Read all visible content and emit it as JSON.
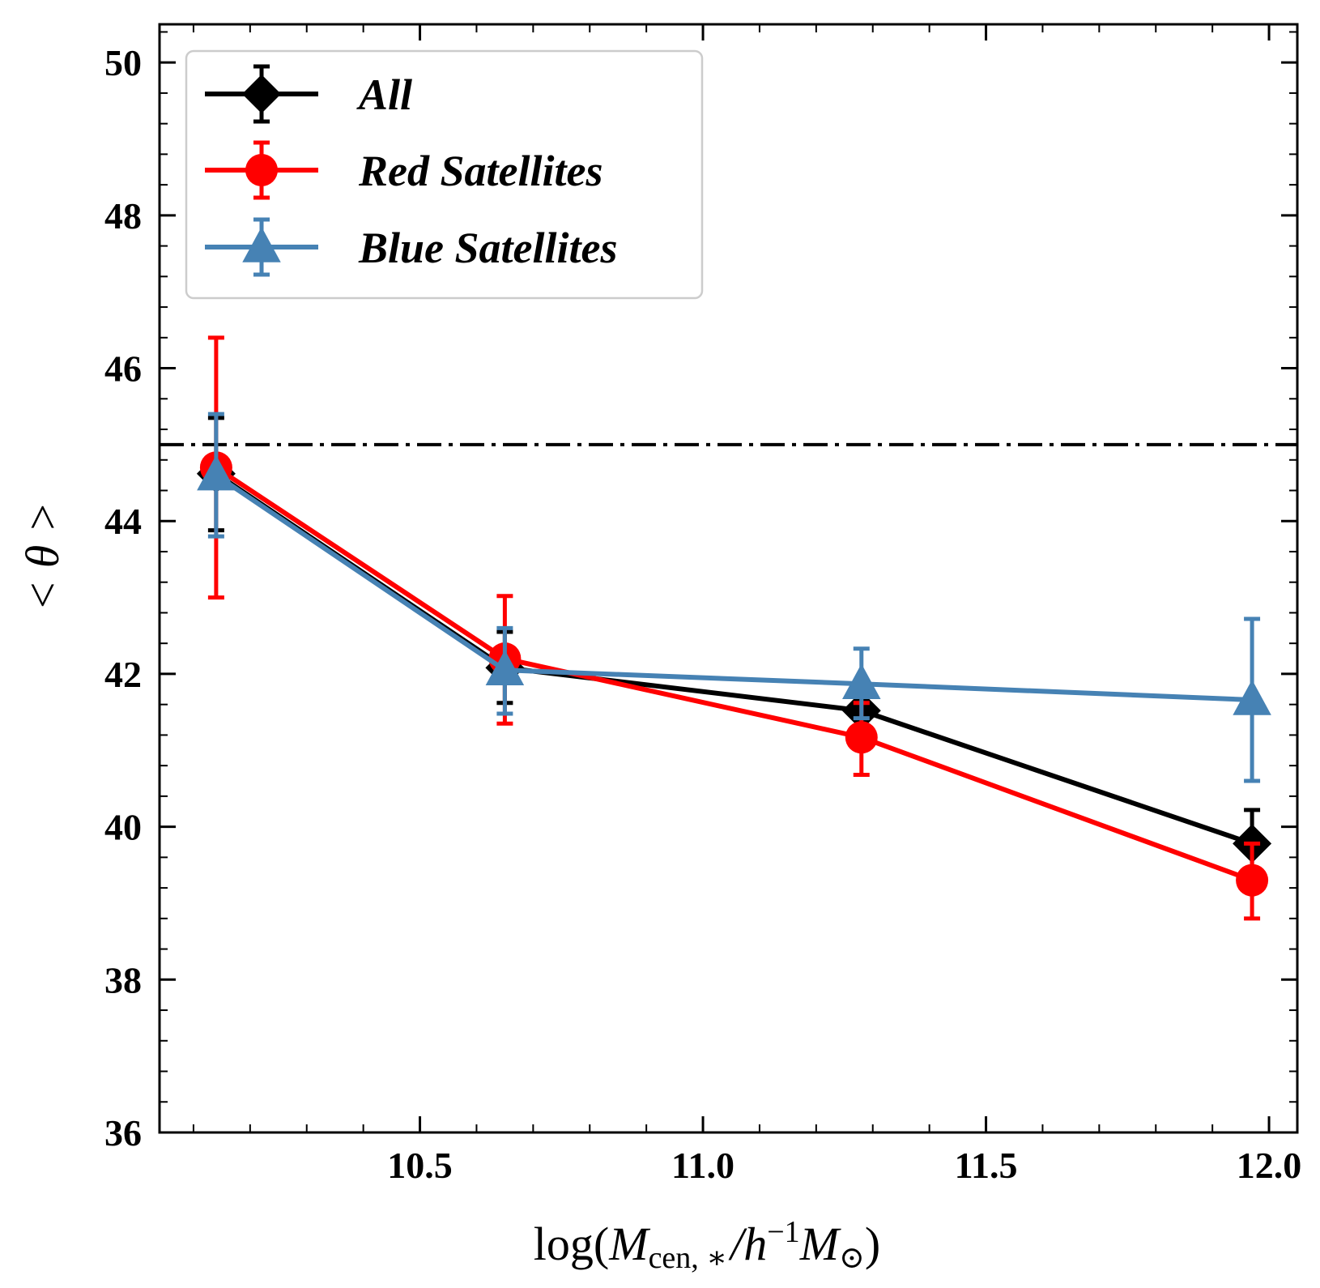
{
  "chart_data": {
    "type": "line",
    "title": "",
    "xlabel": "log(M_cen,*/h^-1 M_sun)",
    "xlabel_parts": {
      "prefix": "log(",
      "m1": "M",
      "m1_sub": "cen, ∗",
      "slash": "/",
      "h": "h",
      "h_sup": "−1",
      "m2": "M",
      "m2_sub": "⊙",
      "suffix": ")"
    },
    "ylabel": "< θ >",
    "xlim": [
      10.04,
      12.05
    ],
    "ylim": [
      36,
      50.5
    ],
    "xticks": [
      10.5,
      11.0,
      11.5,
      12.0
    ],
    "xtick_labels": [
      "10.5",
      "11.0",
      "11.5",
      "12.0"
    ],
    "x_minor_step": 0.1,
    "yticks": [
      36,
      38,
      40,
      42,
      44,
      46,
      48,
      50
    ],
    "ytick_labels": [
      "36",
      "38",
      "40",
      "42",
      "44",
      "46",
      "48",
      "50"
    ],
    "y_minor_step": 0.4,
    "reference_line": {
      "y": 45,
      "style": "dashdot",
      "color": "#000000"
    },
    "legend": {
      "position": "top-left"
    },
    "series": [
      {
        "name": "All",
        "color": "#000000",
        "marker": "diamond",
        "x": [
          10.14,
          10.65,
          11.28,
          11.97
        ],
        "y": [
          44.62,
          42.08,
          41.52,
          39.78
        ],
        "yerr_low": [
          43.88,
          41.62,
          41.25,
          39.45
        ],
        "yerr_high": [
          45.35,
          42.55,
          41.78,
          40.22
        ]
      },
      {
        "name": "Red Satellites",
        "color": "#ff0000",
        "marker": "circle",
        "x": [
          10.14,
          10.65,
          11.28,
          11.97
        ],
        "y": [
          44.7,
          42.2,
          41.17,
          39.3
        ],
        "yerr_low": [
          43.0,
          41.35,
          40.68,
          38.8
        ],
        "yerr_high": [
          46.4,
          43.02,
          41.62,
          39.78
        ]
      },
      {
        "name": "Blue Satellites",
        "color": "#4682b4",
        "marker": "triangle",
        "x": [
          10.14,
          10.65,
          11.28,
          11.97
        ],
        "y": [
          44.6,
          42.05,
          41.87,
          41.66
        ],
        "yerr_low": [
          43.8,
          41.48,
          41.42,
          40.6
        ],
        "yerr_high": [
          45.4,
          42.6,
          42.33,
          42.72
        ]
      }
    ]
  }
}
